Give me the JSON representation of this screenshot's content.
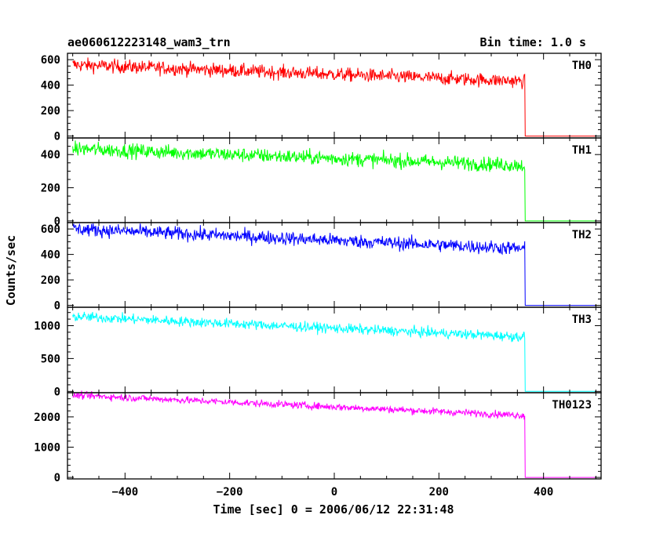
{
  "chart_data": {
    "type": "line",
    "title": "ae060612223148_wam3_trn",
    "bin_time": "Bin time: 1.0 s",
    "xlabel": "Time [sec] 0 = 2006/06/12 22:31:48",
    "ylabel": "Counts/sec",
    "xlim": [
      -510,
      510
    ],
    "x_ticks": [
      -400,
      -200,
      0,
      200,
      400
    ],
    "x_tick_labels": [
      "−400",
      "−200",
      "0",
      "200",
      "400"
    ],
    "data_x_range": [
      -500,
      500
    ],
    "drop_x": 364,
    "panels": [
      {
        "name": "TH0",
        "color": "#ff0000",
        "ylim": [
          -15,
          650
        ],
        "ticks": [
          0,
          200,
          400,
          600
        ],
        "minor": 50,
        "start": 560,
        "end": 430,
        "noise": 27,
        "after": 0
      },
      {
        "name": "TH1",
        "color": "#00ff00",
        "ylim": [
          -10,
          500
        ],
        "ticks": [
          0,
          200,
          400
        ],
        "minor": 50,
        "start": 435,
        "end": 335,
        "noise": 22,
        "after": 0
      },
      {
        "name": "TH2",
        "color": "#0000ff",
        "ylim": [
          -15,
          650
        ],
        "ticks": [
          0,
          200,
          400,
          600
        ],
        "minor": 50,
        "start": 600,
        "end": 445,
        "noise": 27,
        "after": 0
      },
      {
        "name": "TH3",
        "color": "#00ffff",
        "ylim": [
          -20,
          1280
        ],
        "ticks": [
          0,
          500,
          1000
        ],
        "minor": 100,
        "start": 1140,
        "end": 830,
        "noise": 38,
        "after": 0
      },
      {
        "name": "TH0123",
        "color": "#ff00ff",
        "ylim": [
          -50,
          2800
        ],
        "ticks": [
          0,
          1000,
          2000
        ],
        "minor": 200,
        "start": 2720,
        "end": 2050,
        "noise": 60,
        "after": 0
      }
    ]
  }
}
